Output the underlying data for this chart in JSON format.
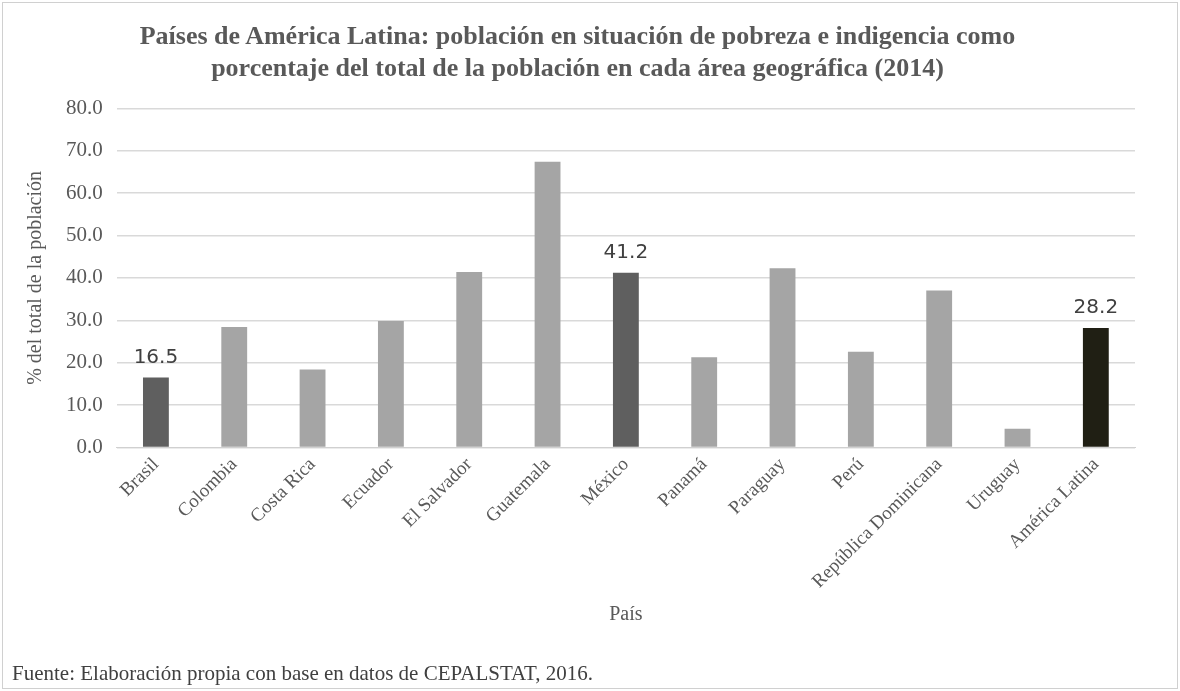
{
  "chart_data": {
    "type": "bar",
    "title": "Países de América Latina: población en situación de pobreza e indigencia como porcentaje del total de la población en cada área geográfica (2014)",
    "xlabel": "País",
    "ylabel": "% del total de la población",
    "categories": [
      "Brasil",
      "Colombia",
      "Costa Rica",
      "Ecuador",
      "El Salvador",
      "Guatemala",
      "México",
      "Panamá",
      "Paraguay",
      "Perú",
      "República Dominicana",
      "Uruguay",
      "América Latina"
    ],
    "values": [
      16.5,
      28.4,
      18.4,
      29.8,
      41.4,
      67.4,
      41.2,
      21.3,
      42.3,
      22.6,
      37.0,
      4.4,
      28.2
    ],
    "colors": [
      "#5f5f5f",
      "#a5a5a5",
      "#a5a5a5",
      "#a5a5a5",
      "#a5a5a5",
      "#a5a5a5",
      "#5f5f5f",
      "#a5a5a5",
      "#a5a5a5",
      "#a5a5a5",
      "#a5a5a5",
      "#a5a5a5",
      "#201f14"
    ],
    "value_labels": [
      "16.5",
      null,
      null,
      null,
      null,
      null,
      "41.2",
      null,
      null,
      null,
      null,
      null,
      "28.2"
    ],
    "ylim": [
      0,
      80
    ],
    "yticks": [
      {
        "value": 0,
        "label": "0.0"
      },
      {
        "value": 10,
        "label": "10.0"
      },
      {
        "value": 20,
        "label": "20.0"
      },
      {
        "value": 30,
        "label": "30.0"
      },
      {
        "value": 40,
        "label": "40.0"
      },
      {
        "value": 50,
        "label": "50.0"
      },
      {
        "value": 60,
        "label": "60.0"
      },
      {
        "value": 70,
        "label": "70.0"
      },
      {
        "value": 80,
        "label": "80.0"
      }
    ],
    "grid": "y",
    "legend": false,
    "annotations": [
      "Fuente: Elaboración propia con base en datos de CEPALSTAT, 2016."
    ]
  }
}
